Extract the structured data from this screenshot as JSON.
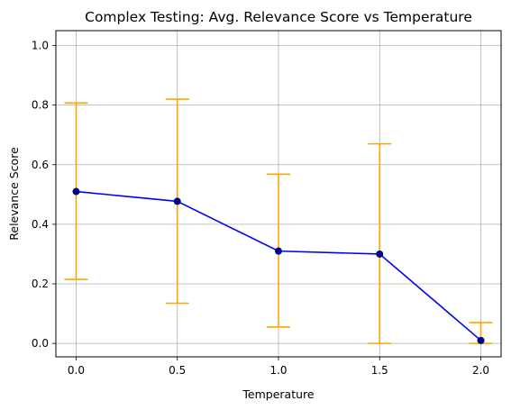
{
  "chart_data": {
    "type": "line",
    "title": "Complex Testing: Avg. Relevance Score vs Temperature",
    "xlabel": "Temperature",
    "ylabel": "Relevance Score",
    "x": [
      0.0,
      0.5,
      1.0,
      1.5,
      2.0
    ],
    "series": [
      {
        "values": [
          0.51,
          0.477,
          0.31,
          0.3,
          0.01
        ],
        "error_low": [
          0.215,
          0.135,
          0.055,
          0.0,
          0.0
        ],
        "error_high": [
          0.807,
          0.82,
          0.568,
          0.67,
          0.07
        ]
      }
    ],
    "xlim": [
      -0.1,
      2.1
    ],
    "ylim": [
      -0.045,
      1.05
    ],
    "xticks": [
      0.0,
      0.5,
      1.0,
      1.5,
      2.0
    ],
    "xtick_labels": [
      "0.0",
      "0.5",
      "1.0",
      "1.5",
      "2.0"
    ],
    "yticks": [
      0.0,
      0.2,
      0.4,
      0.6,
      0.8,
      1.0
    ],
    "ytick_labels": [
      "0.0",
      "0.2",
      "0.4",
      "0.6",
      "0.8",
      "1.0"
    ],
    "grid": true,
    "colors": {
      "line": "#0000ff",
      "marker": "#00008b",
      "errorbar": "#ffa500",
      "grid": "#b0b0b0"
    }
  }
}
